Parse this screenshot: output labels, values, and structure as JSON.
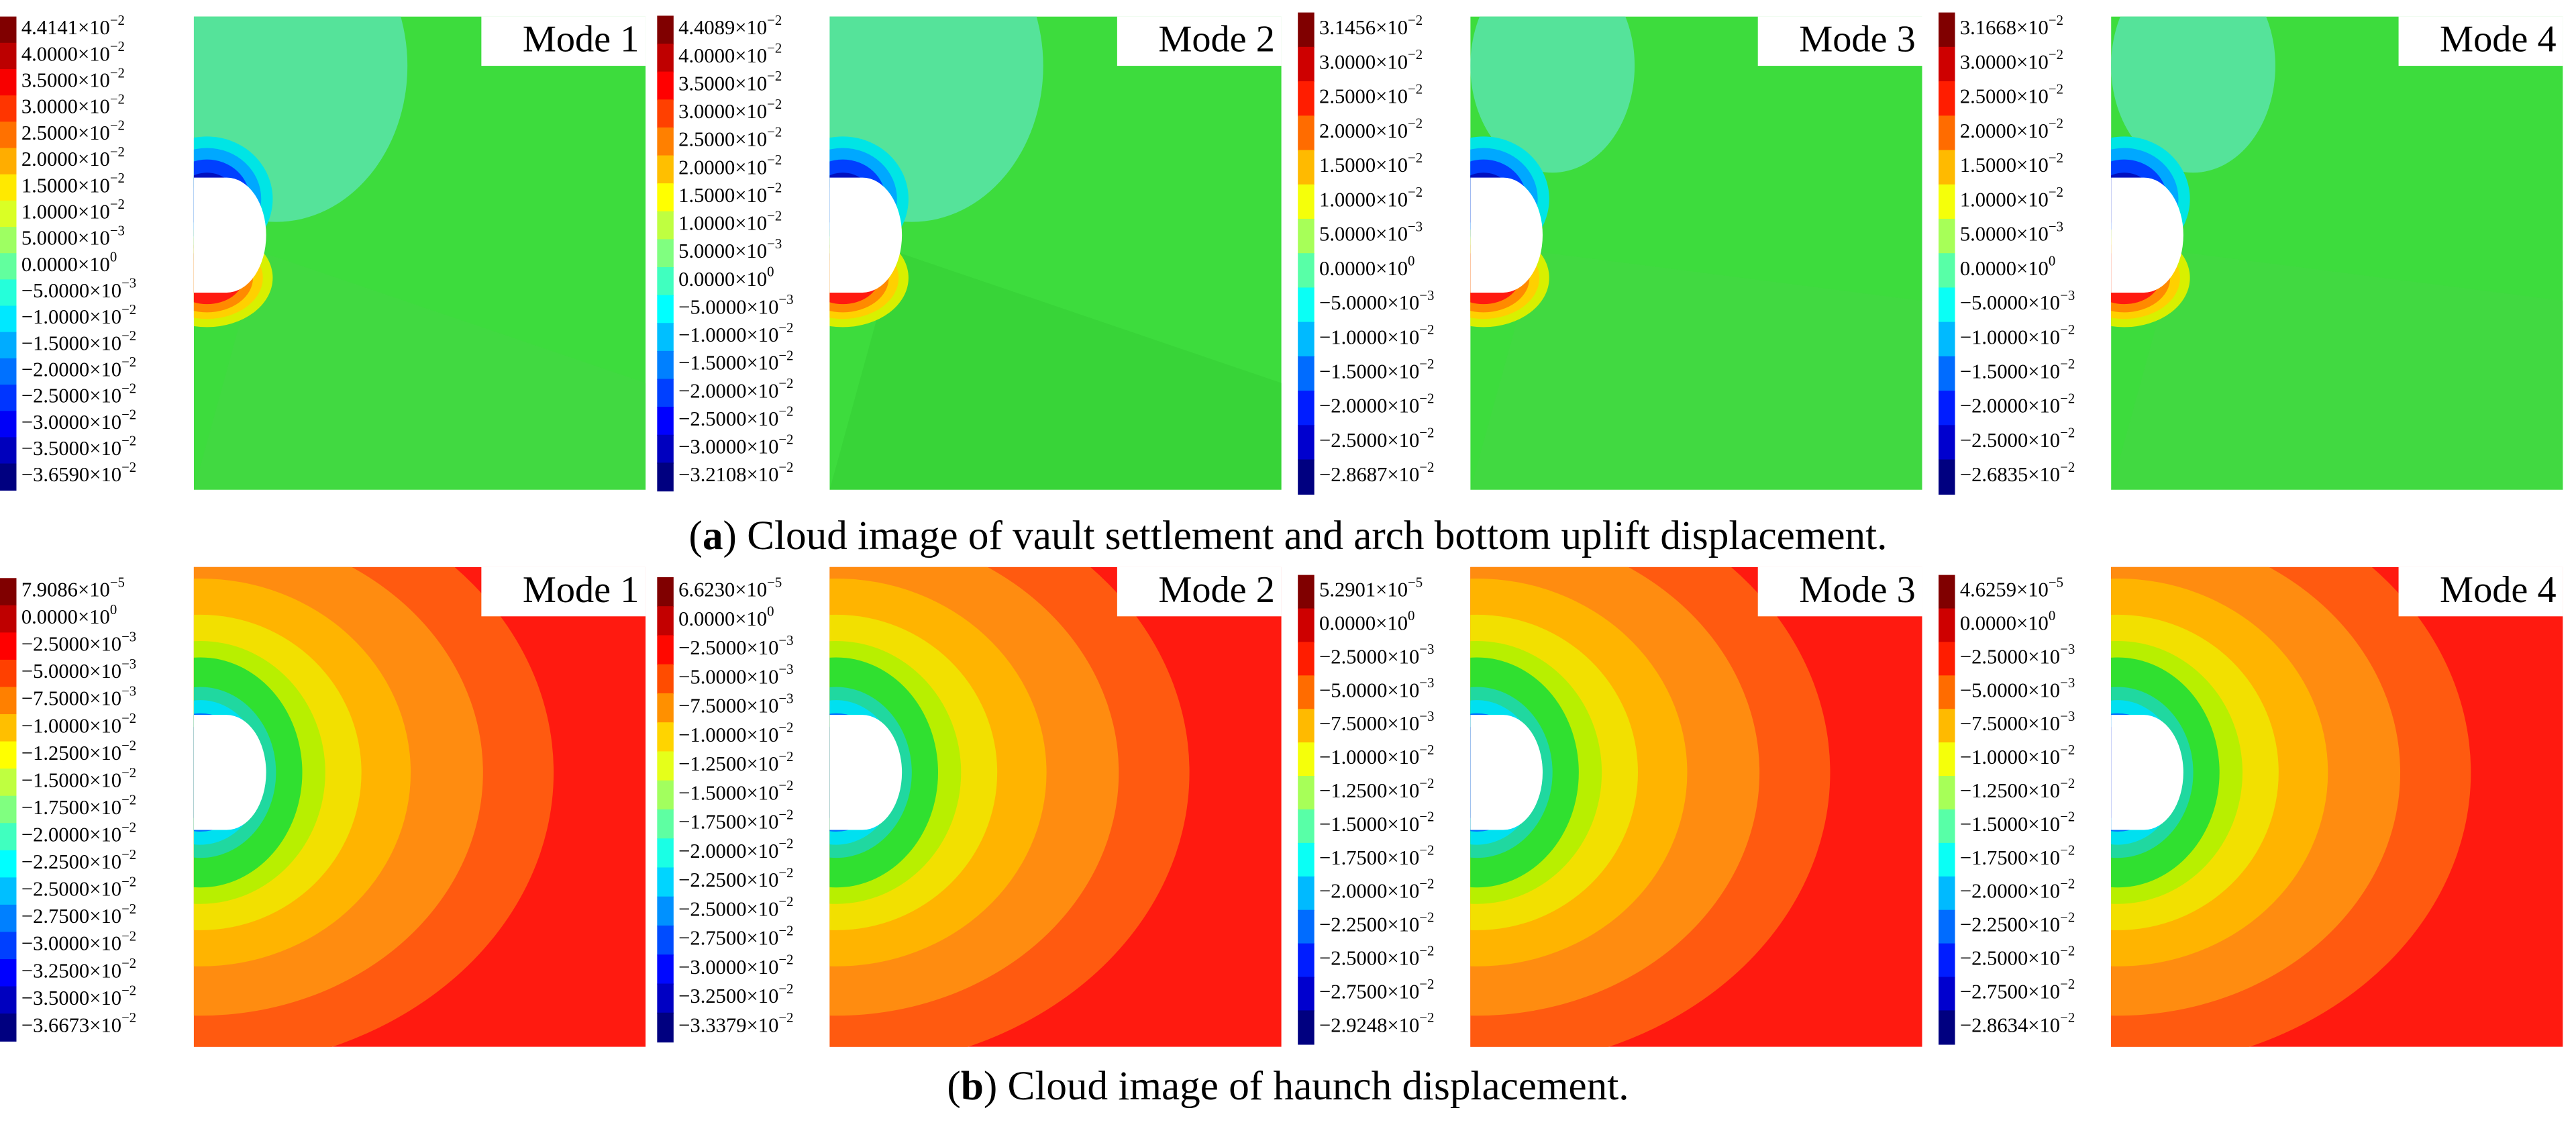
{
  "rows": [
    {
      "caption": {
        "pre": "(",
        "label": "a",
        "post": ") Cloud image of vault settlement and arch bottom uplift displacement."
      },
      "panels": [
        {
          "mode": "Mode 1",
          "legend": [
            [
              "4.4141×10",
              "−2"
            ],
            [
              "4.0000×10",
              "−2"
            ],
            [
              "3.5000×10",
              "−2"
            ],
            [
              "3.0000×10",
              "−2"
            ],
            [
              "2.5000×10",
              "−2"
            ],
            [
              "2.0000×10",
              "−2"
            ],
            [
              "1.5000×10",
              "−2"
            ],
            [
              "1.0000×10",
              "−2"
            ],
            [
              "5.0000×10",
              "−3"
            ],
            [
              "0.0000×10",
              "0"
            ],
            [
              "−5.0000×10",
              "−3"
            ],
            [
              "−1.0000×10",
              "−2"
            ],
            [
              "−1.5000×10",
              "−2"
            ],
            [
              "−2.0000×10",
              "−2"
            ],
            [
              "−2.5000×10",
              "−2"
            ],
            [
              "−3.0000×10",
              "−2"
            ],
            [
              "−3.5000×10",
              "−2"
            ],
            [
              "−3.6590×10",
              "−2"
            ]
          ]
        },
        {
          "mode": "Mode 2",
          "legend": [
            [
              "4.4089×10",
              "−2"
            ],
            [
              "4.0000×10",
              "−2"
            ],
            [
              "3.5000×10",
              "−2"
            ],
            [
              "3.0000×10",
              "−2"
            ],
            [
              "2.5000×10",
              "−2"
            ],
            [
              "2.0000×10",
              "−2"
            ],
            [
              "1.5000×10",
              "−2"
            ],
            [
              "1.0000×10",
              "−2"
            ],
            [
              "5.0000×10",
              "−3"
            ],
            [
              "0.0000×10",
              "0"
            ],
            [
              "−5.0000×10",
              "−3"
            ],
            [
              "−1.0000×10",
              "−2"
            ],
            [
              "−1.5000×10",
              "−2"
            ],
            [
              "−2.0000×10",
              "−2"
            ],
            [
              "−2.5000×10",
              "−2"
            ],
            [
              "−3.0000×10",
              "−2"
            ],
            [
              "−3.2108×10",
              "−2"
            ]
          ]
        },
        {
          "mode": "Mode 3",
          "legend": [
            [
              "3.1456×10",
              "−2"
            ],
            [
              "3.0000×10",
              "−2"
            ],
            [
              "2.5000×10",
              "−2"
            ],
            [
              "2.0000×10",
              "−2"
            ],
            [
              "1.5000×10",
              "−2"
            ],
            [
              "1.0000×10",
              "−2"
            ],
            [
              "5.0000×10",
              "−3"
            ],
            [
              "0.0000×10",
              "0"
            ],
            [
              "−5.0000×10",
              "−3"
            ],
            [
              "−1.0000×10",
              "−2"
            ],
            [
              "−1.5000×10",
              "−2"
            ],
            [
              "−2.0000×10",
              "−2"
            ],
            [
              "−2.5000×10",
              "−2"
            ],
            [
              "−2.8687×10",
              "−2"
            ]
          ]
        },
        {
          "mode": "Mode 4",
          "legend": [
            [
              "3.1668×10",
              "−2"
            ],
            [
              "3.0000×10",
              "−2"
            ],
            [
              "2.5000×10",
              "−2"
            ],
            [
              "2.0000×10",
              "−2"
            ],
            [
              "1.5000×10",
              "−2"
            ],
            [
              "1.0000×10",
              "−2"
            ],
            [
              "5.0000×10",
              "−3"
            ],
            [
              "0.0000×10",
              "0"
            ],
            [
              "−5.0000×10",
              "−3"
            ],
            [
              "−1.0000×10",
              "−2"
            ],
            [
              "−1.5000×10",
              "−2"
            ],
            [
              "−2.0000×10",
              "−2"
            ],
            [
              "−2.5000×10",
              "−2"
            ],
            [
              "−2.6835×10",
              "−2"
            ]
          ]
        }
      ]
    },
    {
      "caption": {
        "pre": "(",
        "label": "b",
        "post": ") Cloud image of haunch displacement."
      },
      "panels": [
        {
          "mode": "Mode 1",
          "legend": [
            [
              "7.9086×10",
              "−5"
            ],
            [
              "0.0000×10",
              "0"
            ],
            [
              "−2.5000×10",
              "−3"
            ],
            [
              "−5.0000×10",
              "−3"
            ],
            [
              "−7.5000×10",
              "−3"
            ],
            [
              "−1.0000×10",
              "−2"
            ],
            [
              "−1.2500×10",
              "−2"
            ],
            [
              "−1.5000×10",
              "−2"
            ],
            [
              "−1.7500×10",
              "−2"
            ],
            [
              "−2.0000×10",
              "−2"
            ],
            [
              "−2.2500×10",
              "−2"
            ],
            [
              "−2.5000×10",
              "−2"
            ],
            [
              "−2.7500×10",
              "−2"
            ],
            [
              "−3.0000×10",
              "−2"
            ],
            [
              "−3.2500×10",
              "−2"
            ],
            [
              "−3.5000×10",
              "−2"
            ],
            [
              "−3.6673×10",
              "−2"
            ]
          ]
        },
        {
          "mode": "Mode 2",
          "legend": [
            [
              "6.6230×10",
              "−5"
            ],
            [
              "0.0000×10",
              "0"
            ],
            [
              "−2.5000×10",
              "−3"
            ],
            [
              "−5.0000×10",
              "−3"
            ],
            [
              "−7.5000×10",
              "−3"
            ],
            [
              "−1.0000×10",
              "−2"
            ],
            [
              "−1.2500×10",
              "−2"
            ],
            [
              "−1.5000×10",
              "−2"
            ],
            [
              "−1.7500×10",
              "−2"
            ],
            [
              "−2.0000×10",
              "−2"
            ],
            [
              "−2.2500×10",
              "−2"
            ],
            [
              "−2.5000×10",
              "−2"
            ],
            [
              "−2.7500×10",
              "−2"
            ],
            [
              "−3.0000×10",
              "−2"
            ],
            [
              "−3.2500×10",
              "−2"
            ],
            [
              "−3.3379×10",
              "−2"
            ]
          ]
        },
        {
          "mode": "Mode 3",
          "legend": [
            [
              "5.2901×10",
              "−5"
            ],
            [
              "0.0000×10",
              "0"
            ],
            [
              "−2.5000×10",
              "−3"
            ],
            [
              "−5.0000×10",
              "−3"
            ],
            [
              "−7.5000×10",
              "−3"
            ],
            [
              "−1.0000×10",
              "−2"
            ],
            [
              "−1.2500×10",
              "−2"
            ],
            [
              "−1.5000×10",
              "−2"
            ],
            [
              "−1.7500×10",
              "−2"
            ],
            [
              "−2.0000×10",
              "−2"
            ],
            [
              "−2.2500×10",
              "−2"
            ],
            [
              "−2.5000×10",
              "−2"
            ],
            [
              "−2.7500×10",
              "−2"
            ],
            [
              "−2.9248×10",
              "−2"
            ]
          ]
        },
        {
          "mode": "Mode 4",
          "legend": [
            [
              "4.6259×10",
              "−5"
            ],
            [
              "0.0000×10",
              "0"
            ],
            [
              "−2.5000×10",
              "−3"
            ],
            [
              "−5.0000×10",
              "−3"
            ],
            [
              "−7.5000×10",
              "−3"
            ],
            [
              "−1.0000×10",
              "−2"
            ],
            [
              "−1.2500×10",
              "−2"
            ],
            [
              "−1.5000×10",
              "−2"
            ],
            [
              "−1.7500×10",
              "−2"
            ],
            [
              "−2.0000×10",
              "−2"
            ],
            [
              "−2.2500×10",
              "−2"
            ],
            [
              "−2.5000×10",
              "−2"
            ],
            [
              "−2.7500×10",
              "−2"
            ],
            [
              "−2.8634×10",
              "−2"
            ]
          ]
        }
      ]
    }
  ]
}
